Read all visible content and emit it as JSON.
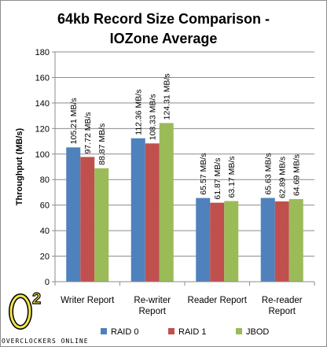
{
  "chart_data": {
    "type": "bar",
    "title_lines": [
      "64kb Record Size Comparison  -",
      "IOZone Average"
    ],
    "ylabel": "Throughput (MB/s)",
    "ylim": [
      0,
      180
    ],
    "yticks": [
      0,
      20,
      40,
      60,
      80,
      100,
      120,
      140,
      160,
      180
    ],
    "grid": true,
    "legend_position": "bottom",
    "categories": [
      [
        "Writer Report"
      ],
      [
        "Re-writer",
        "Report"
      ],
      [
        "Reader Report"
      ],
      [
        "Re-reader",
        "Report"
      ]
    ],
    "series": [
      {
        "name": "RAID 0",
        "color": "#4f81bd",
        "values": [
          105.21,
          112.36,
          65.57,
          65.63
        ],
        "labels": [
          "105.21 MB/s",
          "112.36 MB/s",
          "65.57 MB/s",
          "65.63 MB/s"
        ]
      },
      {
        "name": "RAID 1",
        "color": "#c0504d",
        "values": [
          97.72,
          108.33,
          61.87,
          62.89
        ],
        "labels": [
          "97.72 MB/s",
          "108.33 MB/s",
          "61.87 MB/s",
          "62.89 MB/s"
        ]
      },
      {
        "name": "JBOD",
        "color": "#9bbb59",
        "values": [
          88.87,
          124.31,
          63.17,
          64.69
        ],
        "labels": [
          "88.87 MB/s",
          "124.31 MB/s",
          "63.17 MB/s",
          "64.69 MB/s"
        ]
      }
    ]
  },
  "watermark": {
    "logo_mark": "O",
    "logo_sup": "2",
    "text": "OVERCLOCKERS ONLINE"
  }
}
